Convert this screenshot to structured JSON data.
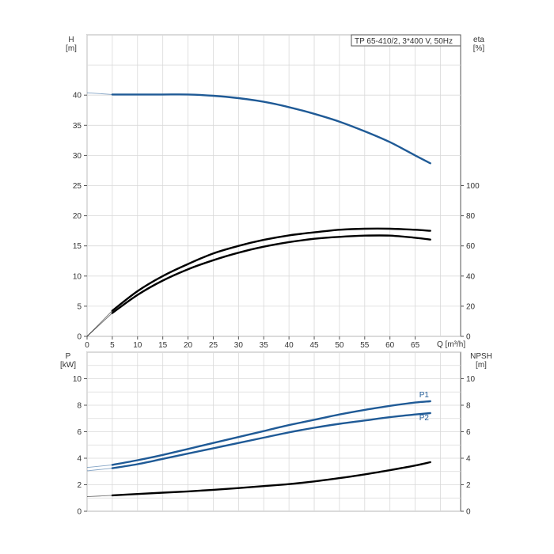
{
  "chart_data": [
    {
      "type": "line",
      "title": "TP 65-410/2, 3*400 V, 50Hz",
      "x_axis": {
        "label": "Q [m³/h]",
        "range": [
          0,
          74
        ],
        "ticks": [
          0,
          5,
          10,
          15,
          20,
          25,
          30,
          35,
          40,
          45,
          50,
          55,
          60,
          65
        ]
      },
      "y_axis_left": {
        "label_line1": "H",
        "label_line2": "[m]",
        "range": [
          0,
          50
        ],
        "ticks": [
          0,
          5,
          10,
          15,
          20,
          25,
          30,
          35,
          40
        ]
      },
      "y_axis_right": {
        "label_line1": "eta",
        "label_line2": "[%]",
        "range": [
          0,
          200
        ],
        "ticks": [
          0,
          20,
          40,
          60,
          80,
          100
        ]
      },
      "grid": true,
      "series": [
        {
          "axis": "left",
          "color": "#1f5a96",
          "x": [
            0,
            5,
            10,
            15,
            20,
            25,
            30,
            35,
            40,
            45,
            50,
            55,
            60,
            65,
            68
          ],
          "values": [
            40.4,
            40.1,
            40.1,
            40.1,
            40.1,
            39.9,
            39.5,
            38.9,
            38.0,
            36.9,
            35.6,
            34.0,
            32.2,
            30.0,
            28.7
          ]
        },
        {
          "axis": "right",
          "color": "#000000",
          "x": [
            0,
            5,
            10,
            15,
            20,
            25,
            30,
            35,
            40,
            45,
            50,
            55,
            60,
            65,
            68
          ],
          "values": [
            0,
            17,
            30,
            40,
            48,
            55,
            60,
            64,
            67,
            69,
            70.7,
            71.4,
            71.4,
            70.7,
            70.0
          ]
        },
        {
          "axis": "right",
          "color": "#000000",
          "x": [
            0,
            5,
            10,
            15,
            20,
            25,
            30,
            35,
            40,
            45,
            50,
            55,
            60,
            65,
            68
          ],
          "values": [
            0,
            15.5,
            27.5,
            37,
            44.5,
            50.5,
            55.5,
            59.5,
            62.5,
            64.7,
            66,
            66.8,
            66.8,
            65.4,
            64.2
          ]
        }
      ]
    },
    {
      "type": "line",
      "x_axis": {
        "range": [
          0,
          74
        ],
        "ticks": []
      },
      "y_axis_left": {
        "label_line1": "P",
        "label_line2": "[kW]",
        "range": [
          0,
          12
        ],
        "ticks": [
          0,
          2,
          4,
          6,
          8,
          10
        ]
      },
      "y_axis_right": {
        "label_line1": "NPSH",
        "label_line2": "[m]",
        "range": [
          0,
          12
        ],
        "ticks": [
          0,
          2,
          4,
          6,
          8,
          10
        ]
      },
      "grid": true,
      "series": [
        {
          "name": "P1",
          "axis": "left",
          "color": "#1f5a96",
          "x": [
            0,
            5,
            10,
            15,
            20,
            25,
            30,
            35,
            40,
            45,
            50,
            55,
            60,
            65,
            68
          ],
          "values": [
            3.3,
            3.5,
            3.85,
            4.25,
            4.7,
            5.15,
            5.6,
            6.05,
            6.5,
            6.9,
            7.3,
            7.65,
            7.95,
            8.2,
            8.3
          ]
        },
        {
          "name": "P2",
          "axis": "left",
          "color": "#1f5a96",
          "x": [
            0,
            5,
            10,
            15,
            20,
            25,
            30,
            35,
            40,
            45,
            50,
            55,
            60,
            65,
            68
          ],
          "values": [
            3.05,
            3.25,
            3.55,
            3.95,
            4.35,
            4.75,
            5.15,
            5.55,
            5.95,
            6.3,
            6.6,
            6.85,
            7.1,
            7.3,
            7.4
          ]
        },
        {
          "axis": "right",
          "color": "#000000",
          "x": [
            0,
            5,
            10,
            15,
            20,
            25,
            30,
            35,
            40,
            45,
            50,
            55,
            60,
            65,
            68
          ],
          "values": [
            1.1,
            1.2,
            1.3,
            1.4,
            1.5,
            1.62,
            1.75,
            1.9,
            2.05,
            2.25,
            2.5,
            2.78,
            3.1,
            3.45,
            3.7
          ]
        }
      ]
    }
  ]
}
